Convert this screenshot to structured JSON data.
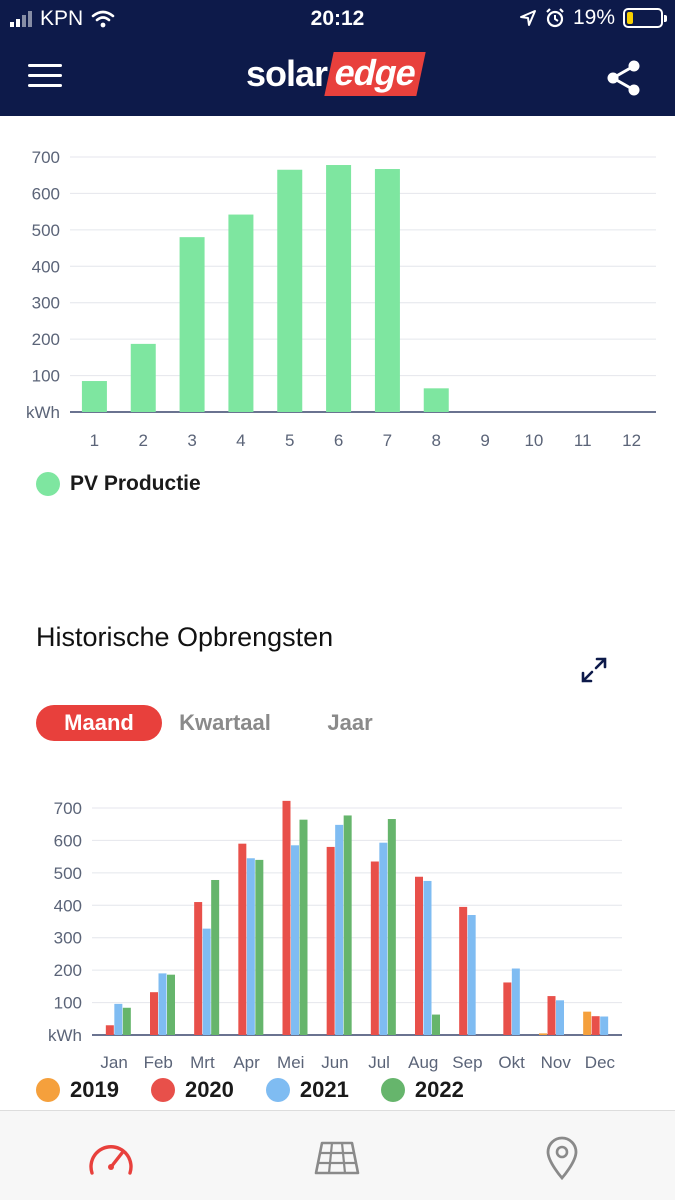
{
  "status_bar": {
    "carrier": "KPN",
    "time": "20:12",
    "battery": "19%",
    "battery_level": 0.19,
    "icons": [
      "signal-icon",
      "wifi-icon",
      "location-icon",
      "alarm-icon",
      "battery-icon"
    ]
  },
  "app_bar": {
    "logo_part1": "solar",
    "logo_part2": "edge",
    "icons": [
      "hamburger-menu-icon",
      "share-icon"
    ]
  },
  "chart_data": [
    {
      "type": "bar",
      "categories": [
        "1",
        "2",
        "3",
        "4",
        "5",
        "6",
        "7",
        "8",
        "9",
        "10",
        "11",
        "12"
      ],
      "series": [
        {
          "name": "PV Productie",
          "values": [
            85,
            187,
            480,
            542,
            665,
            678,
            667,
            65,
            0,
            0,
            0,
            0
          ],
          "color": "#7ee6a0"
        }
      ],
      "yticks": [
        "kWh",
        "100",
        "200",
        "300",
        "400",
        "500",
        "600",
        "700"
      ],
      "ylim": [
        0,
        700
      ],
      "grid": true,
      "legend": "bottom-left"
    },
    {
      "type": "bar",
      "categories": [
        "Jan",
        "Feb",
        "Mrt",
        "Apr",
        "Mei",
        "Jun",
        "Jul",
        "Aug",
        "Sep",
        "Okt",
        "Nov",
        "Dec"
      ],
      "series": [
        {
          "name": "2019",
          "values": [
            0,
            0,
            0,
            0,
            0,
            0,
            0,
            0,
            0,
            0,
            5,
            72
          ],
          "color": "#f5a03c"
        },
        {
          "name": "2020",
          "values": [
            30,
            132,
            410,
            590,
            722,
            580,
            535,
            488,
            395,
            162,
            120,
            58
          ],
          "color": "#e8504a"
        },
        {
          "name": "2021",
          "values": [
            96,
            190,
            328,
            545,
            585,
            648,
            593,
            475,
            370,
            205,
            107,
            57
          ],
          "color": "#7fbcf2"
        },
        {
          "name": "2022",
          "values": [
            84,
            186,
            478,
            540,
            664,
            677,
            666,
            63,
            0,
            0,
            0,
            0
          ],
          "color": "#66b56c"
        }
      ],
      "yticks": [
        "kWh",
        "100",
        "200",
        "300",
        "400",
        "500",
        "600",
        "700"
      ],
      "ylim": [
        0,
        700
      ],
      "grid": true,
      "legend": "bottom"
    }
  ],
  "history": {
    "title": "Historische Opbrengsten",
    "tabs": [
      "Maand",
      "Kwartaal",
      "Jaar"
    ],
    "active_tab": "Maand",
    "icons": [
      "expand-icon"
    ]
  },
  "tab_bar": {
    "icons": [
      "dashboard-gauge-icon",
      "solar-panel-layout-icon",
      "location-pin-icon"
    ],
    "active": "dashboard-gauge-icon"
  },
  "colors": {
    "header_bg": "#0d1a4a",
    "accent": "#e8403c",
    "pv_green": "#7ee6a0"
  }
}
